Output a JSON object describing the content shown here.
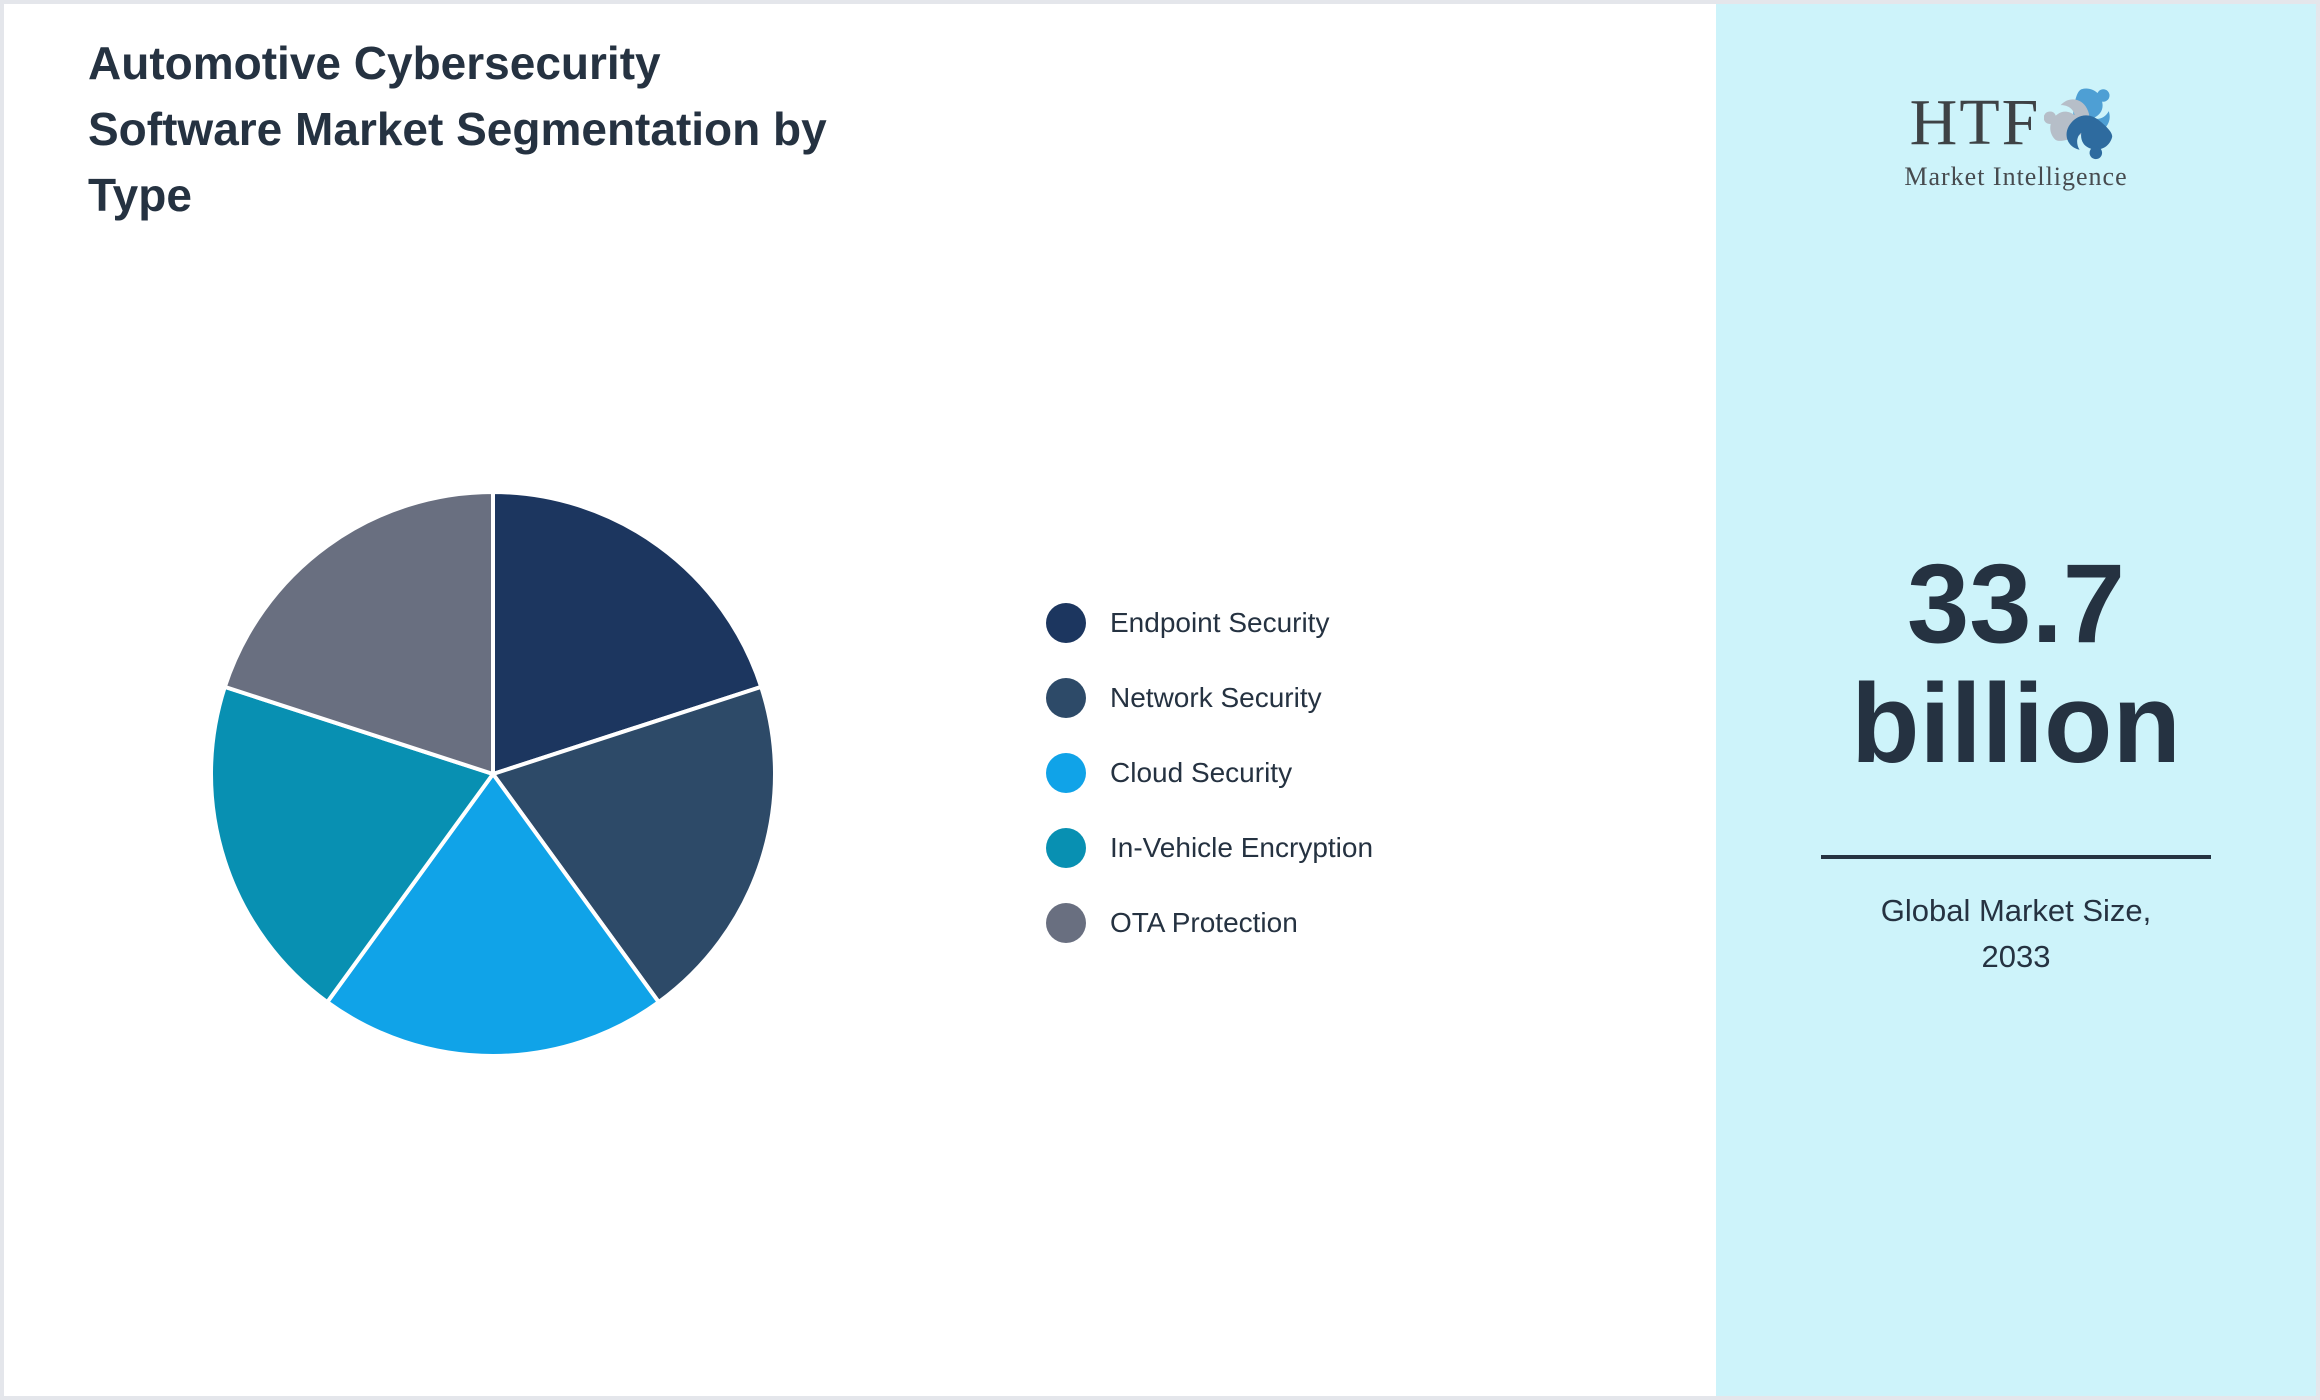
{
  "header": {
    "title_lines": [
      "Automotive Cybersecurity",
      "Software Market Segmentation by",
      "Type"
    ]
  },
  "chart_data": {
    "type": "pie",
    "title": "Automotive Cybersecurity Software Market Segmentation by Type",
    "labels": [
      "Endpoint Security",
      "Network Security",
      "Cloud Security",
      "In-Vehicle Encryption",
      "OTA Protection"
    ],
    "values": [
      20,
      20,
      20,
      20,
      20
    ],
    "unit": "percent",
    "colors": [
      "#1c365f",
      "#2d4a68",
      "#10a3e8",
      "#0890b2",
      "#696f80"
    ],
    "start_angle_deg": 0,
    "direction": "clockwise",
    "slice_border_color": "#ffffff",
    "legend_position": "right",
    "data_labels": "none"
  },
  "sidebar": {
    "logo": {
      "text": "HTF",
      "subtext": "Market Intelligence"
    },
    "market_size_value": "33.7",
    "market_size_unit": "billion",
    "caption_line1": "Global Market Size,",
    "caption_line2": "2033"
  },
  "colors": {
    "text_dark": "#253241",
    "sidebar_bg": "#cdf3fa",
    "page_border": "#e4e6eb",
    "logo_icon_light_blue": "#4e9fd4",
    "logo_icon_gray": "#b6bec8",
    "logo_icon_dark_blue": "#2e6b9f"
  }
}
